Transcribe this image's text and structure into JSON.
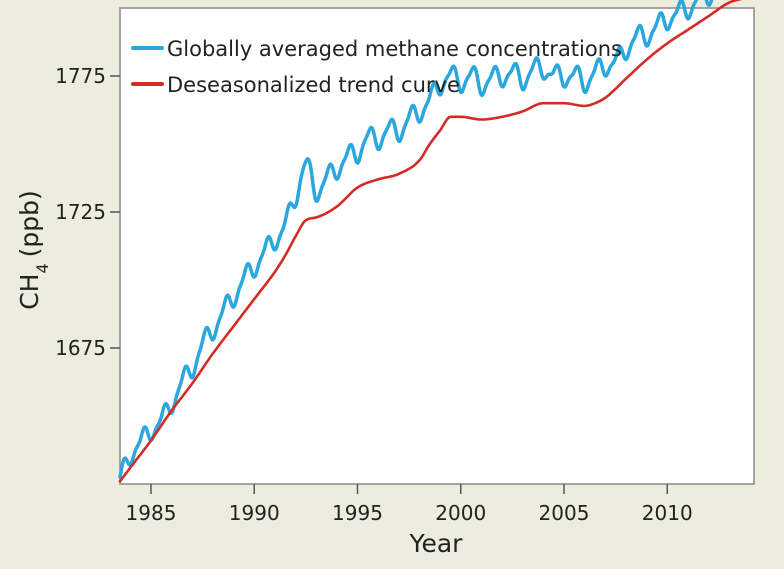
{
  "chart_data": {
    "type": "line",
    "xlabel": "Year",
    "ylabel_main": "CH",
    "ylabel_sub": "4",
    "ylabel_unit": "(ppb)",
    "xlim": [
      1983.5,
      2014.2
    ],
    "ylim": [
      1625,
      1800
    ],
    "xticks": [
      1985,
      1990,
      1995,
      2000,
      2005,
      2010
    ],
    "yticks": [
      1675,
      1725,
      1775
    ],
    "grid": false,
    "legend": "top-left",
    "series": [
      {
        "name": "Globally averaged methane concentrations",
        "color": "#2aa7df",
        "style": "monthly-seasonal",
        "x": [
          1983.5,
          1984.0,
          1984.5,
          1985.0,
          1985.5,
          1986.0,
          1986.5,
          1987.0,
          1987.5,
          1988.0,
          1988.5,
          1989.0,
          1989.5,
          1990.0,
          1990.5,
          1991.0,
          1991.5,
          1992.0,
          1992.5,
          1993.0,
          1993.5,
          1994.0,
          1994.5,
          1995.0,
          1995.5,
          1996.0,
          1996.5,
          1997.0,
          1997.5,
          1998.0,
          1998.5,
          1999.0,
          1999.5,
          2000.0,
          2000.5,
          2001.0,
          2001.5,
          2002.0,
          2002.5,
          2003.0,
          2003.5,
          2004.0,
          2004.5,
          2005.0,
          2005.5,
          2006.0,
          2006.5,
          2007.0,
          2007.5,
          2008.0,
          2008.5,
          2009.0,
          2009.5,
          2010.0,
          2010.5,
          2011.0,
          2011.5,
          2012.0,
          2012.5,
          2013.0,
          2013.5,
          2014.0
        ],
        "y": [
          1626,
          1636,
          1640,
          1645,
          1648,
          1655,
          1662,
          1668,
          1676,
          1682,
          1688,
          1694,
          1700,
          1705,
          1710,
          1715,
          1720,
          1731,
          1742,
          1733,
          1737,
          1741,
          1745,
          1747,
          1752,
          1752,
          1755,
          1755,
          1759,
          1762,
          1766,
          1772,
          1775,
          1773,
          1775,
          1772,
          1774,
          1775,
          1776,
          1774,
          1777,
          1778,
          1775,
          1775,
          1775,
          1773,
          1776,
          1779,
          1780,
          1785,
          1789,
          1790,
          1793,
          1796,
          1798,
          1800,
          1803,
          1805,
          1807,
          1810,
          1812,
          1813
        ]
      },
      {
        "name": "Deseasonalized trend curve",
        "color": "#d42b27",
        "style": "smooth",
        "x": [
          1983.5,
          1984.0,
          1985.0,
          1986.0,
          1987.0,
          1988.0,
          1989.0,
          1990.0,
          1991.0,
          1991.5,
          1992.0,
          1992.5,
          1993.0,
          1994.0,
          1995.0,
          1996.0,
          1997.0,
          1998.0,
          1998.5,
          1999.0,
          1999.5,
          2000.0,
          2001.0,
          2002.0,
          2003.0,
          2004.0,
          2004.5,
          2005.0,
          2006.0,
          2006.5,
          2007.0,
          2008.0,
          2009.0,
          2010.0,
          2011.0,
          2012.0,
          2013.0,
          2014.0
        ],
        "y": [
          1626,
          1631,
          1641,
          1652,
          1662,
          1673,
          1683,
          1693,
          1703,
          1709,
          1716,
          1722,
          1723,
          1727,
          1734,
          1737,
          1739,
          1744,
          1750,
          1755,
          1760,
          1760,
          1759,
          1760,
          1762,
          1765,
          1765,
          1765,
          1764,
          1765,
          1767,
          1774,
          1781,
          1787,
          1792,
          1797,
          1802,
          1804
        ]
      }
    ]
  }
}
